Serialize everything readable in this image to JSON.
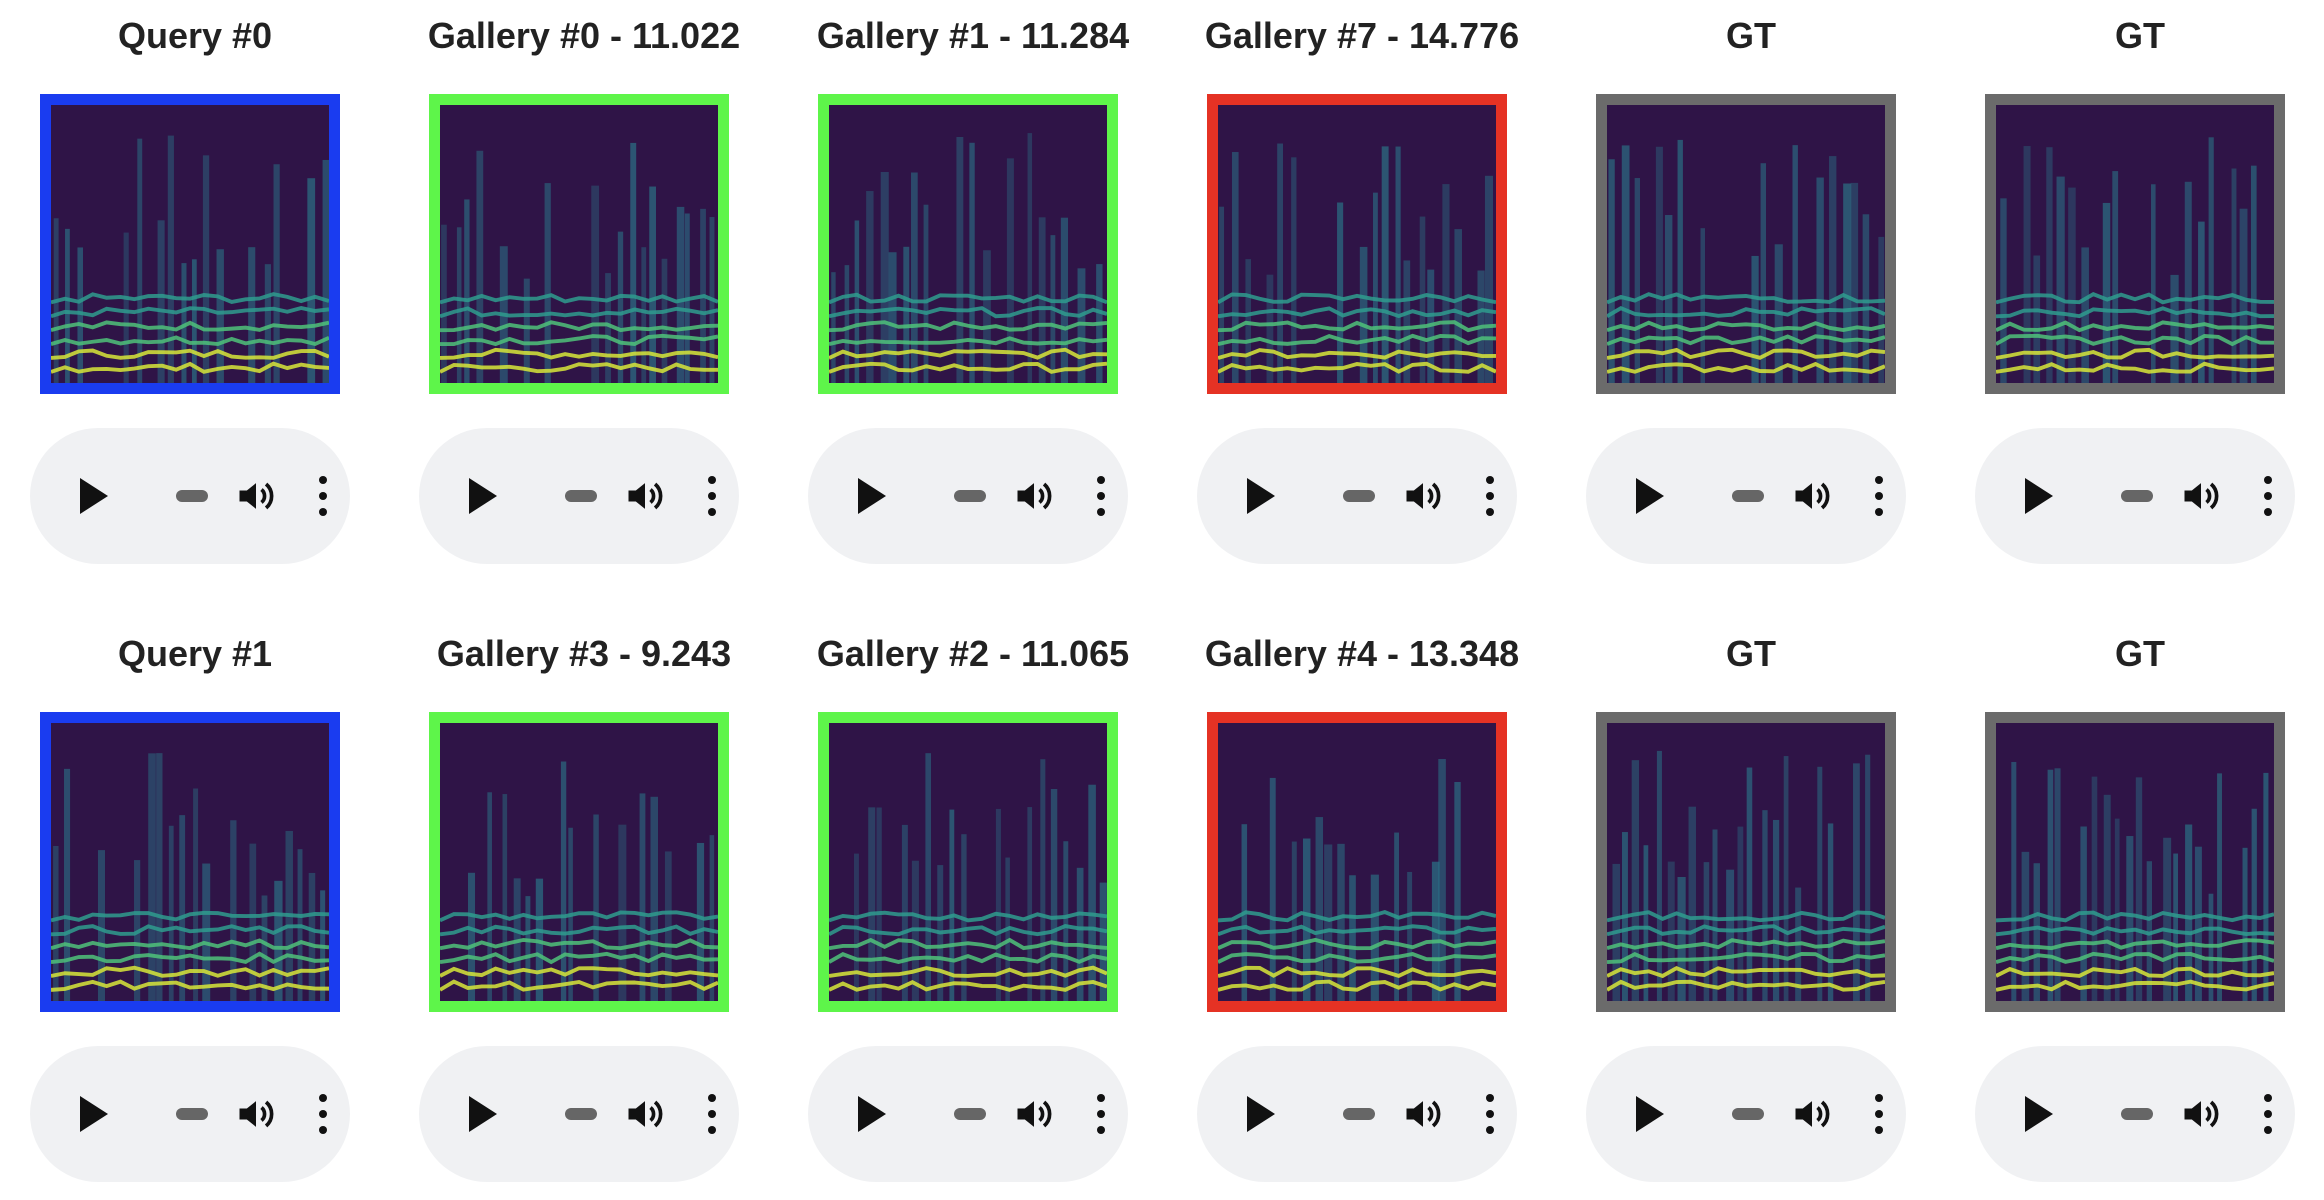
{
  "colors": {
    "query": "#1a3cf0",
    "correct": "#5ef54a",
    "wrong": "#e53224",
    "gt": "#6b6b6b",
    "background": "#2f1447",
    "player_bg": "#f0f1f3"
  },
  "icons": {
    "play": "play-icon",
    "progress": "progress-bar",
    "volume": "volume-icon",
    "menu": "more-vertical-icon"
  },
  "rows": [
    {
      "cells": [
        {
          "label": "Query #0",
          "kind": "query"
        },
        {
          "label": "Gallery #0 - 11.022",
          "kind": "correct"
        },
        {
          "label": "Gallery #1 - 11.284",
          "kind": "correct"
        },
        {
          "label": "Gallery #7 - 14.776",
          "kind": "wrong"
        },
        {
          "label": "GT",
          "kind": "gt"
        },
        {
          "label": "GT",
          "kind": "gt"
        }
      ]
    },
    {
      "cells": [
        {
          "label": "Query #1",
          "kind": "query"
        },
        {
          "label": "Gallery #3 - 9.243",
          "kind": "correct"
        },
        {
          "label": "Gallery #2 - 11.065",
          "kind": "correct"
        },
        {
          "label": "Gallery #4 - 13.348",
          "kind": "wrong"
        },
        {
          "label": "GT",
          "kind": "gt"
        },
        {
          "label": "GT",
          "kind": "gt"
        }
      ]
    }
  ]
}
